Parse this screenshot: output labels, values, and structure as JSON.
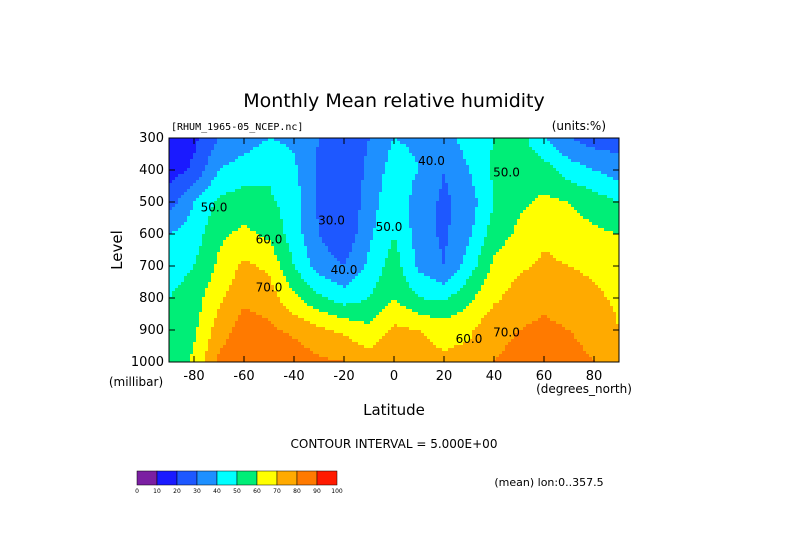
{
  "chart_data": {
    "type": "contour",
    "title": "Monthly Mean relative humidity",
    "dataset_label": "[RHUM_1965-05_NCEP.nc]",
    "units_label": "(units:%)",
    "xlabel": "Latitude",
    "x_unit_label": "(degrees_north)",
    "ylabel": "Level",
    "y_unit_label": "(millibar)",
    "xlim": [
      -90,
      90
    ],
    "ylim": [
      1000,
      300
    ],
    "x_ticks": [
      -80,
      -60,
      -40,
      -20,
      0,
      20,
      40,
      60,
      80
    ],
    "y_ticks": [
      300,
      400,
      500,
      600,
      700,
      800,
      900,
      1000
    ],
    "contour_interval_label": "CONTOUR INTERVAL = 5.000E+00",
    "footer_label": "(mean) lon:0..357.5",
    "contour_labels": [
      {
        "text": "30.0",
        "lat": -25,
        "level": 570
      },
      {
        "text": "40.0",
        "lat": -20,
        "level": 725
      },
      {
        "text": "40.0",
        "lat": 15,
        "level": 385
      },
      {
        "text": "50.0",
        "lat": -2,
        "level": 590
      },
      {
        "text": "50.0",
        "lat": 45,
        "level": 420
      },
      {
        "text": "50.0",
        "lat": -72,
        "level": 530
      },
      {
        "text": "60.0",
        "lat": -50,
        "level": 630
      },
      {
        "text": "60.0",
        "lat": 30,
        "level": 940
      },
      {
        "text": "70.0",
        "lat": -50,
        "level": 780
      },
      {
        "text": "70.0",
        "lat": 45,
        "level": 920
      }
    ],
    "colorbar": {
      "ticks": [
        "0",
        "10",
        "20",
        "30",
        "40",
        "50",
        "60",
        "70",
        "80",
        "90",
        "100"
      ],
      "colors": [
        "#7b1fa2",
        "#1a1aff",
        "#1e58ff",
        "#1e90ff",
        "#00ffff",
        "#00ee77",
        "#ffff00",
        "#ffaa00",
        "#ff7a00",
        "#ff1a00"
      ]
    },
    "field_grid": {
      "lats": [
        -90,
        -80,
        -70,
        -60,
        -50,
        -40,
        -30,
        -20,
        -10,
        0,
        10,
        20,
        30,
        40,
        50,
        60,
        70,
        80,
        90
      ],
      "levels": [
        300,
        400,
        500,
        600,
        700,
        800,
        900,
        1000
      ],
      "values": [
        [
          10,
          18,
          30,
          35,
          40,
          38,
          30,
          25,
          30,
          40,
          38,
          35,
          45,
          50,
          55,
          40,
          30,
          25,
          25
        ],
        [
          15,
          22,
          40,
          45,
          48,
          42,
          28,
          22,
          32,
          45,
          40,
          30,
          40,
          52,
          57,
          55,
          45,
          40,
          35
        ],
        [
          25,
          40,
          52,
          55,
          52,
          45,
          28,
          20,
          35,
          48,
          35,
          28,
          35,
          50,
          58,
          62,
          60,
          55,
          50
        ],
        [
          40,
          45,
          58,
          62,
          58,
          45,
          30,
          22,
          38,
          50,
          35,
          28,
          38,
          55,
          62,
          68,
          65,
          62,
          60
        ],
        [
          45,
          50,
          62,
          72,
          68,
          50,
          35,
          30,
          42,
          55,
          38,
          30,
          45,
          62,
          68,
          72,
          70,
          68,
          65
        ],
        [
          50,
          55,
          68,
          78,
          75,
          62,
          52,
          45,
          50,
          60,
          50,
          48,
          58,
          68,
          75,
          78,
          75,
          72,
          68
        ],
        [
          52,
          58,
          75,
          85,
          82,
          78,
          72,
          68,
          62,
          72,
          70,
          66,
          68,
          78,
          80,
          82,
          80,
          78,
          70
        ],
        [
          50,
          62,
          82,
          88,
          88,
          86,
          82,
          80,
          75,
          80,
          75,
          72,
          74,
          80,
          82,
          84,
          82,
          80,
          75
        ]
      ]
    }
  }
}
